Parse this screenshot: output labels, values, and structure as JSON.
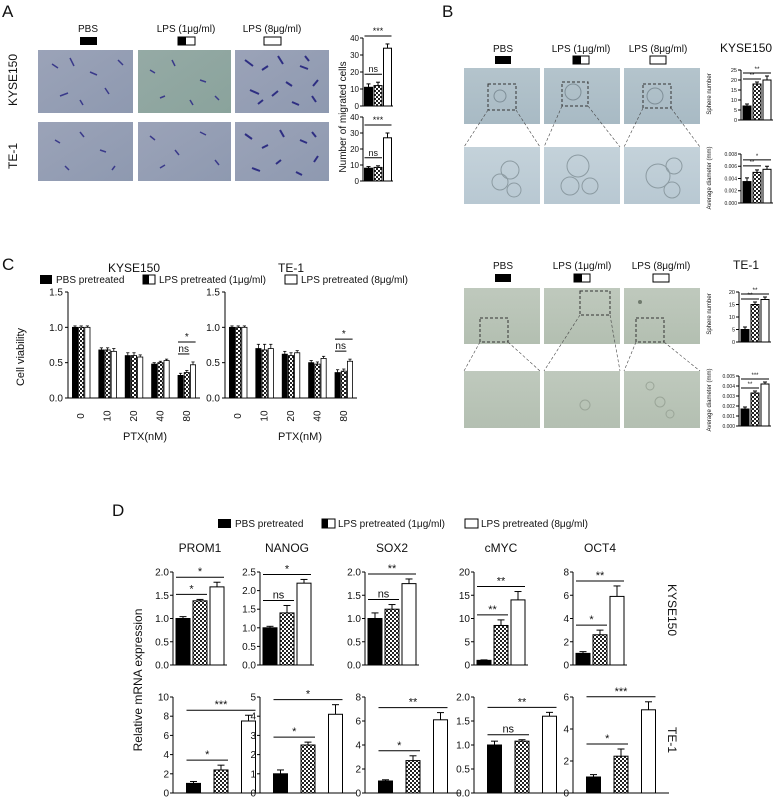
{
  "panels": {
    "A": {
      "label": "A",
      "column_headers": [
        "PBS",
        "LPS (1μg/ml)",
        "LPS (8μg/ml)"
      ],
      "row_labels": [
        "KYSE150",
        "TE-1"
      ],
      "bar_ylabel": "Number of migrated cells"
    },
    "B": {
      "label": "B",
      "column_headers": [
        "PBS",
        "LPS (1μg/ml)",
        "LPS (8μg/ml)"
      ],
      "cell_lines": [
        "KYSE150",
        "TE-1"
      ],
      "sphere_label": "Sphere number",
      "diam_label": "Average diameter (mm)"
    },
    "C": {
      "label": "C",
      "legend": [
        "PBS pretreated",
        "LPS pretreated (1μg/ml)",
        "LPS pretreated (8μg/ml)"
      ],
      "ylabel": "Cell viability",
      "xlabel": "PTX(nM)"
    },
    "D": {
      "label": "D",
      "legend": [
        "PBS pretreated",
        "LPS pretreated (1μg/ml)",
        "LPS pretreated (8μg/ml)"
      ],
      "ylabel": "Relative mRNA expression",
      "row_labels": [
        "KYSE150",
        "TE-1"
      ]
    }
  },
  "chart_data": [
    {
      "id": "A-KYSE150",
      "type": "bar",
      "categories": [
        "PBS",
        "LPS 1",
        "LPS 8"
      ],
      "values": [
        11,
        12,
        34
      ],
      "errors": [
        2,
        2,
        2.5
      ],
      "ylim": [
        0,
        40
      ],
      "yticks": [
        0,
        10,
        20,
        30,
        40
      ],
      "annotations": [
        {
          "from": 0,
          "to": 1,
          "text": "ns"
        },
        {
          "from": 0,
          "to": 2,
          "text": "***"
        }
      ]
    },
    {
      "id": "A-TE-1",
      "type": "bar",
      "categories": [
        "PBS",
        "LPS 1",
        "LPS 8"
      ],
      "values": [
        8,
        8.5,
        27
      ],
      "errors": [
        1,
        1,
        3
      ],
      "ylim": [
        0,
        40
      ],
      "yticks": [
        0,
        10,
        20,
        30,
        40
      ],
      "annotations": [
        {
          "from": 0,
          "to": 1,
          "text": "ns"
        },
        {
          "from": 0,
          "to": 2,
          "text": "***"
        }
      ]
    },
    {
      "id": "B-KYSE150-sphere",
      "type": "bar",
      "categories": [
        "PBS",
        "LPS 1",
        "LPS 8"
      ],
      "values": [
        7,
        18,
        20
      ],
      "errors": [
        1,
        1,
        2
      ],
      "ylim": [
        0,
        25
      ],
      "yticks": [
        0,
        5,
        10,
        15,
        20,
        25
      ],
      "annotations": [
        {
          "from": 0,
          "to": 1,
          "text": "**"
        },
        {
          "from": 0,
          "to": 2,
          "text": "**"
        }
      ]
    },
    {
      "id": "B-KYSE150-diameter",
      "type": "bar",
      "categories": [
        "PBS",
        "LPS 1",
        "LPS 8"
      ],
      "values": [
        0.0035,
        0.005,
        0.0055
      ],
      "errors": [
        0.0006,
        0.0004,
        0.0005
      ],
      "ylim": [
        0,
        0.008
      ],
      "yticks": [
        0,
        0.002,
        0.004,
        0.006,
        0.008
      ],
      "annotations": [
        {
          "from": 0,
          "to": 1,
          "text": "**"
        },
        {
          "from": 0,
          "to": 2,
          "text": "*"
        }
      ]
    },
    {
      "id": "B-TE-1-sphere",
      "type": "bar",
      "categories": [
        "PBS",
        "LPS 1",
        "LPS 8"
      ],
      "values": [
        5,
        15,
        17
      ],
      "errors": [
        1,
        1,
        1
      ],
      "ylim": [
        0,
        20
      ],
      "yticks": [
        0,
        5,
        10,
        15,
        20
      ],
      "annotations": [
        {
          "from": 0,
          "to": 1,
          "text": "**"
        },
        {
          "from": 0,
          "to": 2,
          "text": "**"
        }
      ]
    },
    {
      "id": "B-TE-1-diameter",
      "type": "bar",
      "categories": [
        "PBS",
        "LPS 1",
        "LPS 8"
      ],
      "values": [
        0.0017,
        0.0033,
        0.0042
      ],
      "errors": [
        0.0002,
        0.0002,
        0.0002
      ],
      "ylim": [
        0,
        0.005
      ],
      "yticks": [
        0,
        0.001,
        0.002,
        0.003,
        0.004,
        0.005
      ],
      "annotations": [
        {
          "from": 0,
          "to": 1,
          "text": "**"
        },
        {
          "from": 0,
          "to": 2,
          "text": "***"
        }
      ]
    },
    {
      "id": "C-KYSE150",
      "type": "bar",
      "title": "KYSE150",
      "categories": [
        "0",
        "10",
        "20",
        "40",
        "80"
      ],
      "series": [
        {
          "name": "PBS pretreated",
          "values": [
            1.0,
            0.68,
            0.6,
            0.48,
            0.32
          ],
          "errors": [
            0.02,
            0.03,
            0.04,
            0.02,
            0.03
          ]
        },
        {
          "name": "LPS pretreated (1μg/ml)",
          "values": [
            1.0,
            0.68,
            0.6,
            0.5,
            0.36
          ],
          "errors": [
            0.02,
            0.03,
            0.04,
            0.02,
            0.03
          ]
        },
        {
          "name": "LPS pretreated (8μg/ml)",
          "values": [
            1.0,
            0.66,
            0.58,
            0.53,
            0.47
          ],
          "errors": [
            0.02,
            0.04,
            0.03,
            0.02,
            0.04
          ]
        }
      ],
      "ylim": [
        0,
        1.5
      ],
      "yticks": [
        0.0,
        0.5,
        1.0,
        1.5
      ],
      "annotations": [
        {
          "group": 4,
          "from": 0,
          "to": 1,
          "text": "ns"
        },
        {
          "group": 4,
          "from": 0,
          "to": 2,
          "text": "*"
        }
      ]
    },
    {
      "id": "C-TE-1",
      "type": "bar",
      "title": "TE-1",
      "categories": [
        "0",
        "10",
        "20",
        "40",
        "80"
      ],
      "series": [
        {
          "name": "PBS pretreated",
          "values": [
            1.0,
            0.7,
            0.62,
            0.5,
            0.36
          ],
          "errors": [
            0.02,
            0.06,
            0.04,
            0.03,
            0.04
          ]
        },
        {
          "name": "LPS pretreated (1μg/ml)",
          "values": [
            1.0,
            0.68,
            0.6,
            0.48,
            0.38
          ],
          "errors": [
            0.02,
            0.08,
            0.04,
            0.03,
            0.03
          ]
        },
        {
          "name": "LPS pretreated (8μg/ml)",
          "values": [
            1.0,
            0.7,
            0.64,
            0.56,
            0.52
          ],
          "errors": [
            0.02,
            0.06,
            0.03,
            0.03,
            0.03
          ]
        }
      ],
      "ylim": [
        0,
        1.5
      ],
      "yticks": [
        0.0,
        0.5,
        1.0,
        1.5
      ],
      "annotations": [
        {
          "group": 4,
          "from": 0,
          "to": 1,
          "text": "ns"
        },
        {
          "group": 4,
          "from": 0,
          "to": 2,
          "text": "*"
        }
      ]
    },
    {
      "id": "D-KYSE150-PROM1",
      "type": "bar",
      "title": "PROM1",
      "categories": [
        "PBS",
        "LPS 1",
        "LPS 8"
      ],
      "values": [
        1.0,
        1.38,
        1.68
      ],
      "errors": [
        0.04,
        0.03,
        0.1
      ],
      "ylim": [
        0,
        2.0
      ],
      "yticks": [
        0.0,
        0.5,
        1.0,
        1.5,
        2.0
      ],
      "annotations": [
        {
          "from": 0,
          "to": 1,
          "text": "*"
        },
        {
          "from": 0,
          "to": 2,
          "text": "*"
        }
      ]
    },
    {
      "id": "D-KYSE150-NANOG",
      "type": "bar",
      "title": "NANOG",
      "categories": [
        "PBS",
        "LPS 1",
        "LPS 8"
      ],
      "values": [
        1.0,
        1.4,
        2.2
      ],
      "errors": [
        0.04,
        0.2,
        0.1
      ],
      "ylim": [
        0,
        2.5
      ],
      "yticks": [
        0.0,
        0.5,
        1.0,
        1.5,
        2.0,
        2.5
      ],
      "annotations": [
        {
          "from": 0,
          "to": 1,
          "text": "ns"
        },
        {
          "from": 0,
          "to": 2,
          "text": "*"
        }
      ]
    },
    {
      "id": "D-KYSE150-SOX2",
      "type": "bar",
      "title": "SOX2",
      "categories": [
        "PBS",
        "LPS 1",
        "LPS 8"
      ],
      "values": [
        1.0,
        1.2,
        1.75
      ],
      "errors": [
        0.12,
        0.1,
        0.1
      ],
      "ylim": [
        0,
        2.0
      ],
      "yticks": [
        0.0,
        0.5,
        1.0,
        1.5,
        2.0
      ],
      "annotations": [
        {
          "from": 0,
          "to": 1,
          "text": "ns"
        },
        {
          "from": 0,
          "to": 2,
          "text": "**"
        }
      ]
    },
    {
      "id": "D-KYSE150-cMYC",
      "type": "bar",
      "title": "cMYC",
      "categories": [
        "PBS",
        "LPS 1",
        "LPS 8"
      ],
      "values": [
        1.0,
        8.5,
        14
      ],
      "errors": [
        0.1,
        1.2,
        1.8
      ],
      "ylim": [
        0,
        20
      ],
      "yticks": [
        0,
        5,
        10,
        15,
        20
      ],
      "annotations": [
        {
          "from": 0,
          "to": 1,
          "text": "**"
        },
        {
          "from": 0,
          "to": 2,
          "text": "**"
        }
      ]
    },
    {
      "id": "D-KYSE150-OCT4",
      "type": "bar",
      "title": "OCT4",
      "categories": [
        "PBS",
        "LPS 1",
        "LPS 8"
      ],
      "values": [
        1.0,
        2.6,
        5.9
      ],
      "errors": [
        0.15,
        0.4,
        0.9
      ],
      "ylim": [
        0,
        8
      ],
      "yticks": [
        0,
        2,
        4,
        6,
        8
      ],
      "annotations": [
        {
          "from": 0,
          "to": 1,
          "text": "*"
        },
        {
          "from": 0,
          "to": 2,
          "text": "**"
        }
      ]
    },
    {
      "id": "D-TE-1-PROM1",
      "type": "bar",
      "categories": [
        "PBS",
        "LPS 1",
        "LPS 8"
      ],
      "values": [
        1.0,
        2.4,
        7.5
      ],
      "errors": [
        0.2,
        0.5,
        0.6
      ],
      "ylim": [
        0,
        10
      ],
      "yticks": [
        0,
        2,
        4,
        6,
        8,
        10
      ],
      "annotations": [
        {
          "from": 0,
          "to": 1,
          "text": "*"
        },
        {
          "from": 0,
          "to": 2,
          "text": "***"
        }
      ]
    },
    {
      "id": "D-TE-1-NANOG",
      "type": "bar",
      "categories": [
        "PBS",
        "LPS 1",
        "LPS 8"
      ],
      "values": [
        1.0,
        2.5,
        4.1
      ],
      "errors": [
        0.2,
        0.15,
        0.5
      ],
      "ylim": [
        0,
        5
      ],
      "yticks": [
        0,
        1,
        2,
        3,
        4,
        5
      ],
      "annotations": [
        {
          "from": 0,
          "to": 1,
          "text": "*"
        },
        {
          "from": 0,
          "to": 2,
          "text": "*"
        }
      ]
    },
    {
      "id": "D-TE-1-SOX2",
      "type": "bar",
      "categories": [
        "PBS",
        "LPS 1",
        "LPS 8"
      ],
      "values": [
        1.0,
        2.7,
        6.1
      ],
      "errors": [
        0.1,
        0.4,
        0.6
      ],
      "ylim": [
        0,
        8
      ],
      "yticks": [
        0,
        2,
        4,
        6,
        8
      ],
      "annotations": [
        {
          "from": 0,
          "to": 1,
          "text": "*"
        },
        {
          "from": 0,
          "to": 2,
          "text": "**"
        }
      ]
    },
    {
      "id": "D-TE-1-cMYC",
      "type": "bar",
      "categories": [
        "PBS",
        "LPS 1",
        "LPS 8"
      ],
      "values": [
        1.0,
        1.08,
        1.6
      ],
      "errors": [
        0.08,
        0.03,
        0.08
      ],
      "ylim": [
        0,
        2.0
      ],
      "yticks": [
        0.0,
        0.5,
        1.0,
        1.5,
        2.0
      ],
      "annotations": [
        {
          "from": 0,
          "to": 1,
          "text": "ns"
        },
        {
          "from": 0,
          "to": 2,
          "text": "**"
        }
      ]
    },
    {
      "id": "D-TE-1-OCT4",
      "type": "bar",
      "categories": [
        "PBS",
        "LPS 1",
        "LPS 8"
      ],
      "values": [
        1.0,
        2.3,
        5.2
      ],
      "errors": [
        0.15,
        0.45,
        0.5
      ],
      "ylim": [
        0,
        6
      ],
      "yticks": [
        0,
        2,
        4,
        6
      ],
      "annotations": [
        {
          "from": 0,
          "to": 1,
          "text": "*"
        },
        {
          "from": 0,
          "to": 2,
          "text": "***"
        }
      ]
    }
  ]
}
